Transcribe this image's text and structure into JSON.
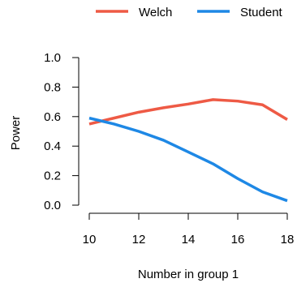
{
  "chart_data": {
    "type": "line",
    "title": "",
    "xlabel": "Number in group 1",
    "ylabel": "Power",
    "x": [
      10,
      11,
      12,
      13,
      14,
      15,
      16,
      17,
      18
    ],
    "xlim": [
      10,
      18
    ],
    "ylim": [
      0.0,
      1.0
    ],
    "xticks": [
      "10",
      "12",
      "14",
      "16",
      "18"
    ],
    "yticks": [
      "0.0",
      "0.2",
      "0.4",
      "0.6",
      "0.8",
      "1.0"
    ],
    "grid": false,
    "legend_position": "top",
    "series": [
      {
        "name": "Welch",
        "color": "#EE5A45",
        "values": [
          0.55,
          0.59,
          0.63,
          0.66,
          0.685,
          0.715,
          0.705,
          0.68,
          0.58
        ]
      },
      {
        "name": "Student",
        "color": "#1E88E5",
        "values": [
          0.59,
          0.55,
          0.5,
          0.44,
          0.36,
          0.28,
          0.18,
          0.09,
          0.03
        ]
      }
    ]
  }
}
